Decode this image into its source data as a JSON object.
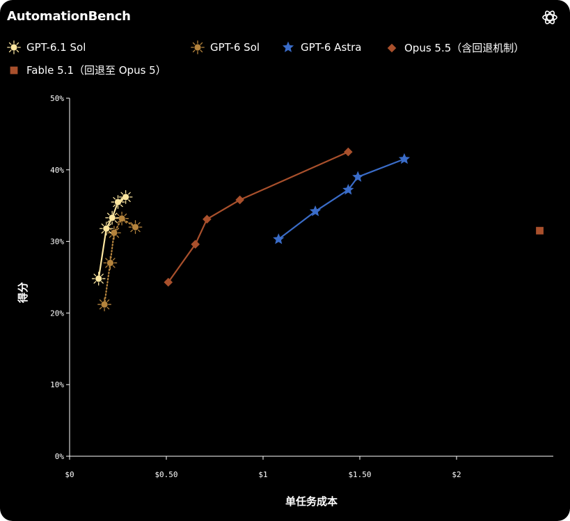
{
  "header": {
    "title": "AutomationBench",
    "logo_icon": "openai-logo-icon"
  },
  "chart_data": {
    "type": "scatter",
    "title": "",
    "xlabel": "单任务成本",
    "ylabel": "得分",
    "xlim": [
      0,
      2.5
    ],
    "ylim": [
      0,
      50
    ],
    "x_ticks": [
      {
        "value": 0,
        "label": "$0"
      },
      {
        "value": 0.5,
        "label": "$0.50"
      },
      {
        "value": 1,
        "label": "$1"
      },
      {
        "value": 1.5,
        "label": "$1.50"
      },
      {
        "value": 2,
        "label": "$2"
      }
    ],
    "y_ticks": [
      {
        "value": 0,
        "label": "0%"
      },
      {
        "value": 10,
        "label": "10%"
      },
      {
        "value": 20,
        "label": "20%"
      },
      {
        "value": 30,
        "label": "30%"
      },
      {
        "value": 40,
        "label": "40%"
      },
      {
        "value": 50,
        "label": "50%"
      }
    ],
    "legend_position": "top-left",
    "grid": false,
    "series": [
      {
        "name": "GPT-6.1 Sol",
        "color": "#fce6a0",
        "marker": "sun",
        "line": "solid",
        "points": [
          [
            0.15,
            24.8
          ],
          [
            0.19,
            31.8
          ],
          [
            0.22,
            33.3
          ],
          [
            0.25,
            35.5
          ],
          [
            0.29,
            36.2
          ]
        ]
      },
      {
        "name": "GPT-6 Sol",
        "color": "#b5843d",
        "marker": "sun",
        "line": "dotted",
        "points": [
          [
            0.18,
            21.2
          ],
          [
            0.21,
            27.0
          ],
          [
            0.23,
            31.2
          ],
          [
            0.27,
            33.2
          ],
          [
            0.34,
            32.0
          ]
        ]
      },
      {
        "name": "GPT-6 Astra",
        "color": "#3a6cc8",
        "marker": "star",
        "line": "solid",
        "points": [
          [
            1.08,
            30.3
          ],
          [
            1.27,
            34.2
          ],
          [
            1.44,
            37.2
          ],
          [
            1.49,
            39.0
          ],
          [
            1.73,
            41.5
          ]
        ]
      },
      {
        "name": "Opus 5.5（含回退机制）",
        "color": "#a9502c",
        "marker": "diamond",
        "line": "solid",
        "points": [
          [
            0.51,
            24.3
          ],
          [
            0.65,
            29.6
          ],
          [
            0.71,
            33.1
          ],
          [
            0.88,
            35.8
          ],
          [
            1.44,
            42.5
          ]
        ]
      },
      {
        "name": "Fable 5.1（回退至 Opus 5）",
        "color": "#a9502c",
        "marker": "square",
        "line": "none",
        "points": [
          [
            2.43,
            31.5
          ]
        ]
      }
    ]
  }
}
